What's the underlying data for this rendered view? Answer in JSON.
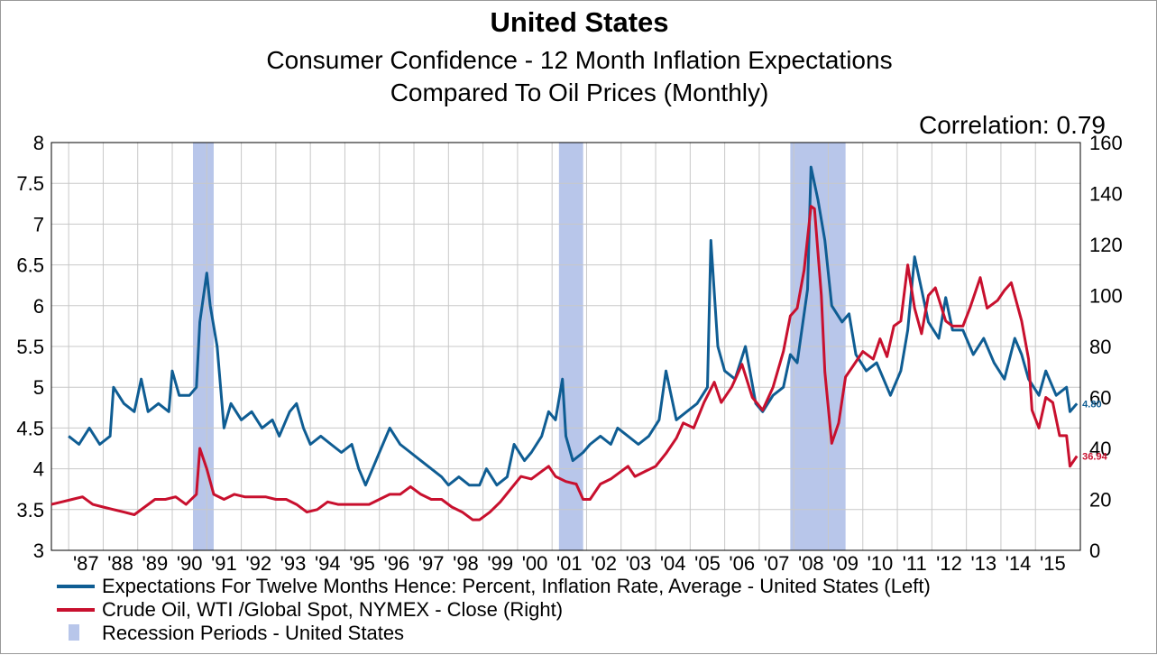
{
  "chart_data": {
    "type": "line",
    "title": "United States",
    "subtitle_1": "Consumer Confidence - 12 Month Inflation Expectations",
    "subtitle_2": "Compared To Oil Prices (Monthly)",
    "annotation": "Correlation: 0.79",
    "x_range": [
      1986.5,
      2016.3
    ],
    "x_tick_labels": [
      "'87",
      "'88",
      "'89",
      "'90",
      "'91",
      "'92",
      "'93",
      "'94",
      "'95",
      "'96",
      "'97",
      "'98",
      "'99",
      "'00",
      "'01",
      "'02",
      "'03",
      "'04",
      "'05",
      "'06",
      "'07",
      "'08",
      "'09",
      "'10",
      "'11",
      "'12",
      "'13",
      "'14",
      "'15"
    ],
    "y_left": {
      "range": [
        3,
        8
      ],
      "ticks": [
        "3",
        "3.5",
        "4",
        "4.5",
        "5",
        "5.5",
        "6",
        "6.5",
        "7",
        "7.5",
        "8"
      ]
    },
    "y_right": {
      "range": [
        0,
        160
      ],
      "ticks": [
        "0",
        "20",
        "40",
        "60",
        "80",
        "100",
        "120",
        "140",
        "160"
      ]
    },
    "grid": true,
    "legend_placement": "bottom",
    "recessions": [
      {
        "start": 1990.6,
        "end": 1991.2
      },
      {
        "start": 2001.2,
        "end": 2001.9
      },
      {
        "start": 2007.9,
        "end": 2009.5
      }
    ],
    "series": [
      {
        "name": "Expectations For Twelve Months Hence: Percent, Inflation Rate, Average - United States  (Left)",
        "axis": "left",
        "color": "#0f5d93",
        "end_label": "4.80",
        "points": [
          [
            1987.0,
            4.4
          ],
          [
            1987.3,
            4.3
          ],
          [
            1987.6,
            4.5
          ],
          [
            1987.9,
            4.3
          ],
          [
            1988.2,
            4.4
          ],
          [
            1988.3,
            5.0
          ],
          [
            1988.6,
            4.8
          ],
          [
            1988.9,
            4.7
          ],
          [
            1989.1,
            5.1
          ],
          [
            1989.3,
            4.7
          ],
          [
            1989.6,
            4.8
          ],
          [
            1989.9,
            4.7
          ],
          [
            1990.0,
            5.2
          ],
          [
            1990.2,
            4.9
          ],
          [
            1990.5,
            4.9
          ],
          [
            1990.7,
            5.0
          ],
          [
            1990.8,
            5.8
          ],
          [
            1991.0,
            6.4
          ],
          [
            1991.1,
            6.0
          ],
          [
            1991.3,
            5.5
          ],
          [
            1991.5,
            4.5
          ],
          [
            1991.7,
            4.8
          ],
          [
            1992.0,
            4.6
          ],
          [
            1992.3,
            4.7
          ],
          [
            1992.6,
            4.5
          ],
          [
            1992.9,
            4.6
          ],
          [
            1993.1,
            4.4
          ],
          [
            1993.4,
            4.7
          ],
          [
            1993.6,
            4.8
          ],
          [
            1993.8,
            4.5
          ],
          [
            1994.0,
            4.3
          ],
          [
            1994.3,
            4.4
          ],
          [
            1994.6,
            4.3
          ],
          [
            1994.9,
            4.2
          ],
          [
            1995.2,
            4.3
          ],
          [
            1995.4,
            4.0
          ],
          [
            1995.6,
            3.8
          ],
          [
            1995.8,
            4.0
          ],
          [
            1996.0,
            4.2
          ],
          [
            1996.3,
            4.5
          ],
          [
            1996.6,
            4.3
          ],
          [
            1996.9,
            4.2
          ],
          [
            1997.2,
            4.1
          ],
          [
            1997.5,
            4.0
          ],
          [
            1997.8,
            3.9
          ],
          [
            1998.0,
            3.8
          ],
          [
            1998.3,
            3.9
          ],
          [
            1998.6,
            3.8
          ],
          [
            1998.9,
            3.8
          ],
          [
            1999.1,
            4.0
          ],
          [
            1999.4,
            3.8
          ],
          [
            1999.7,
            3.9
          ],
          [
            1999.9,
            4.3
          ],
          [
            2000.2,
            4.1
          ],
          [
            2000.4,
            4.2
          ],
          [
            2000.7,
            4.4
          ],
          [
            2000.9,
            4.7
          ],
          [
            2001.1,
            4.6
          ],
          [
            2001.3,
            5.1
          ],
          [
            2001.4,
            4.4
          ],
          [
            2001.6,
            4.1
          ],
          [
            2001.9,
            4.2
          ],
          [
            2002.1,
            4.3
          ],
          [
            2002.4,
            4.4
          ],
          [
            2002.7,
            4.3
          ],
          [
            2002.9,
            4.5
          ],
          [
            2003.2,
            4.4
          ],
          [
            2003.5,
            4.3
          ],
          [
            2003.8,
            4.4
          ],
          [
            2004.1,
            4.6
          ],
          [
            2004.3,
            5.2
          ],
          [
            2004.6,
            4.6
          ],
          [
            2004.9,
            4.7
          ],
          [
            2005.2,
            4.8
          ],
          [
            2005.5,
            5.0
          ],
          [
            2005.6,
            6.8
          ],
          [
            2005.8,
            5.5
          ],
          [
            2006.0,
            5.2
          ],
          [
            2006.3,
            5.1
          ],
          [
            2006.6,
            5.5
          ],
          [
            2006.9,
            4.8
          ],
          [
            2007.1,
            4.7
          ],
          [
            2007.4,
            4.9
          ],
          [
            2007.7,
            5.0
          ],
          [
            2007.9,
            5.4
          ],
          [
            2008.1,
            5.3
          ],
          [
            2008.4,
            6.2
          ],
          [
            2008.5,
            7.7
          ],
          [
            2008.7,
            7.3
          ],
          [
            2008.9,
            6.8
          ],
          [
            2009.1,
            6.0
          ],
          [
            2009.4,
            5.8
          ],
          [
            2009.6,
            5.9
          ],
          [
            2009.8,
            5.4
          ],
          [
            2010.1,
            5.2
          ],
          [
            2010.4,
            5.3
          ],
          [
            2010.6,
            5.1
          ],
          [
            2010.8,
            4.9
          ],
          [
            2011.1,
            5.2
          ],
          [
            2011.3,
            5.7
          ],
          [
            2011.5,
            6.6
          ],
          [
            2011.7,
            6.2
          ],
          [
            2011.9,
            5.8
          ],
          [
            2012.2,
            5.6
          ],
          [
            2012.4,
            6.1
          ],
          [
            2012.6,
            5.7
          ],
          [
            2012.9,
            5.7
          ],
          [
            2013.2,
            5.4
          ],
          [
            2013.5,
            5.6
          ],
          [
            2013.8,
            5.3
          ],
          [
            2014.1,
            5.1
          ],
          [
            2014.4,
            5.6
          ],
          [
            2014.6,
            5.4
          ],
          [
            2014.8,
            5.1
          ],
          [
            2015.1,
            4.9
          ],
          [
            2015.3,
            5.2
          ],
          [
            2015.6,
            4.9
          ],
          [
            2015.9,
            5.0
          ],
          [
            2016.0,
            4.7
          ],
          [
            2016.2,
            4.8
          ]
        ]
      },
      {
        "name": "Crude Oil, WTI /Global Spot, NYMEX  - Close  (Right)",
        "axis": "right",
        "color": "#c8102e",
        "end_label": "36.94",
        "points": [
          [
            1986.5,
            18
          ],
          [
            1986.8,
            19
          ],
          [
            1987.1,
            20
          ],
          [
            1987.4,
            21
          ],
          [
            1987.7,
            18
          ],
          [
            1988.0,
            17
          ],
          [
            1988.3,
            16
          ],
          [
            1988.6,
            15
          ],
          [
            1988.9,
            14
          ],
          [
            1989.2,
            17
          ],
          [
            1989.5,
            20
          ],
          [
            1989.8,
            20
          ],
          [
            1990.1,
            21
          ],
          [
            1990.4,
            18
          ],
          [
            1990.7,
            22
          ],
          [
            1990.8,
            40
          ],
          [
            1991.0,
            32
          ],
          [
            1991.2,
            22
          ],
          [
            1991.5,
            20
          ],
          [
            1991.8,
            22
          ],
          [
            1992.1,
            21
          ],
          [
            1992.4,
            21
          ],
          [
            1992.7,
            21
          ],
          [
            1993.0,
            20
          ],
          [
            1993.3,
            20
          ],
          [
            1993.6,
            18
          ],
          [
            1993.9,
            15
          ],
          [
            1994.2,
            16
          ],
          [
            1994.5,
            19
          ],
          [
            1994.8,
            18
          ],
          [
            1995.1,
            18
          ],
          [
            1995.4,
            18
          ],
          [
            1995.7,
            18
          ],
          [
            1996.0,
            20
          ],
          [
            1996.3,
            22
          ],
          [
            1996.6,
            22
          ],
          [
            1996.9,
            25
          ],
          [
            1997.2,
            22
          ],
          [
            1997.5,
            20
          ],
          [
            1997.8,
            20
          ],
          [
            1998.1,
            17
          ],
          [
            1998.4,
            15
          ],
          [
            1998.7,
            12
          ],
          [
            1998.9,
            12
          ],
          [
            1999.2,
            15
          ],
          [
            1999.5,
            19
          ],
          [
            1999.8,
            24
          ],
          [
            2000.1,
            29
          ],
          [
            2000.4,
            28
          ],
          [
            2000.7,
            31
          ],
          [
            2000.9,
            33
          ],
          [
            2001.1,
            29
          ],
          [
            2001.4,
            27
          ],
          [
            2001.7,
            26
          ],
          [
            2001.9,
            20
          ],
          [
            2002.1,
            20
          ],
          [
            2002.4,
            26
          ],
          [
            2002.7,
            28
          ],
          [
            2002.9,
            30
          ],
          [
            2003.2,
            33
          ],
          [
            2003.4,
            29
          ],
          [
            2003.7,
            31
          ],
          [
            2004.0,
            33
          ],
          [
            2004.3,
            38
          ],
          [
            2004.6,
            44
          ],
          [
            2004.8,
            50
          ],
          [
            2005.1,
            48
          ],
          [
            2005.4,
            58
          ],
          [
            2005.7,
            66
          ],
          [
            2005.9,
            58
          ],
          [
            2006.2,
            64
          ],
          [
            2006.5,
            73
          ],
          [
            2006.8,
            60
          ],
          [
            2007.1,
            55
          ],
          [
            2007.4,
            64
          ],
          [
            2007.7,
            78
          ],
          [
            2007.9,
            92
          ],
          [
            2008.1,
            95
          ],
          [
            2008.3,
            110
          ],
          [
            2008.5,
            135
          ],
          [
            2008.6,
            134
          ],
          [
            2008.8,
            100
          ],
          [
            2008.9,
            70
          ],
          [
            2009.1,
            42
          ],
          [
            2009.3,
            50
          ],
          [
            2009.5,
            68
          ],
          [
            2009.7,
            72
          ],
          [
            2010.0,
            78
          ],
          [
            2010.3,
            75
          ],
          [
            2010.5,
            83
          ],
          [
            2010.7,
            76
          ],
          [
            2010.9,
            88
          ],
          [
            2011.1,
            90
          ],
          [
            2011.3,
            112
          ],
          [
            2011.5,
            95
          ],
          [
            2011.7,
            85
          ],
          [
            2011.9,
            100
          ],
          [
            2012.1,
            103
          ],
          [
            2012.4,
            90
          ],
          [
            2012.6,
            88
          ],
          [
            2012.9,
            88
          ],
          [
            2013.1,
            95
          ],
          [
            2013.4,
            107
          ],
          [
            2013.6,
            95
          ],
          [
            2013.9,
            98
          ],
          [
            2014.1,
            102
          ],
          [
            2014.3,
            105
          ],
          [
            2014.6,
            90
          ],
          [
            2014.8,
            75
          ],
          [
            2014.9,
            55
          ],
          [
            2015.1,
            48
          ],
          [
            2015.3,
            60
          ],
          [
            2015.5,
            58
          ],
          [
            2015.7,
            45
          ],
          [
            2015.9,
            45
          ],
          [
            2016.0,
            33
          ],
          [
            2016.2,
            37
          ]
        ]
      }
    ],
    "legend": [
      {
        "label": "Expectations For Twelve Months Hence: Percent, Inflation Rate, Average - United States  (Left)",
        "color": "#0f5d93",
        "kind": "line"
      },
      {
        "label": "Crude Oil, WTI /Global Spot, NYMEX  - Close  (Right)",
        "color": "#c8102e",
        "kind": "line"
      },
      {
        "label": "Recession Periods - United States",
        "color": "#b8c6ea",
        "kind": "box"
      }
    ]
  }
}
